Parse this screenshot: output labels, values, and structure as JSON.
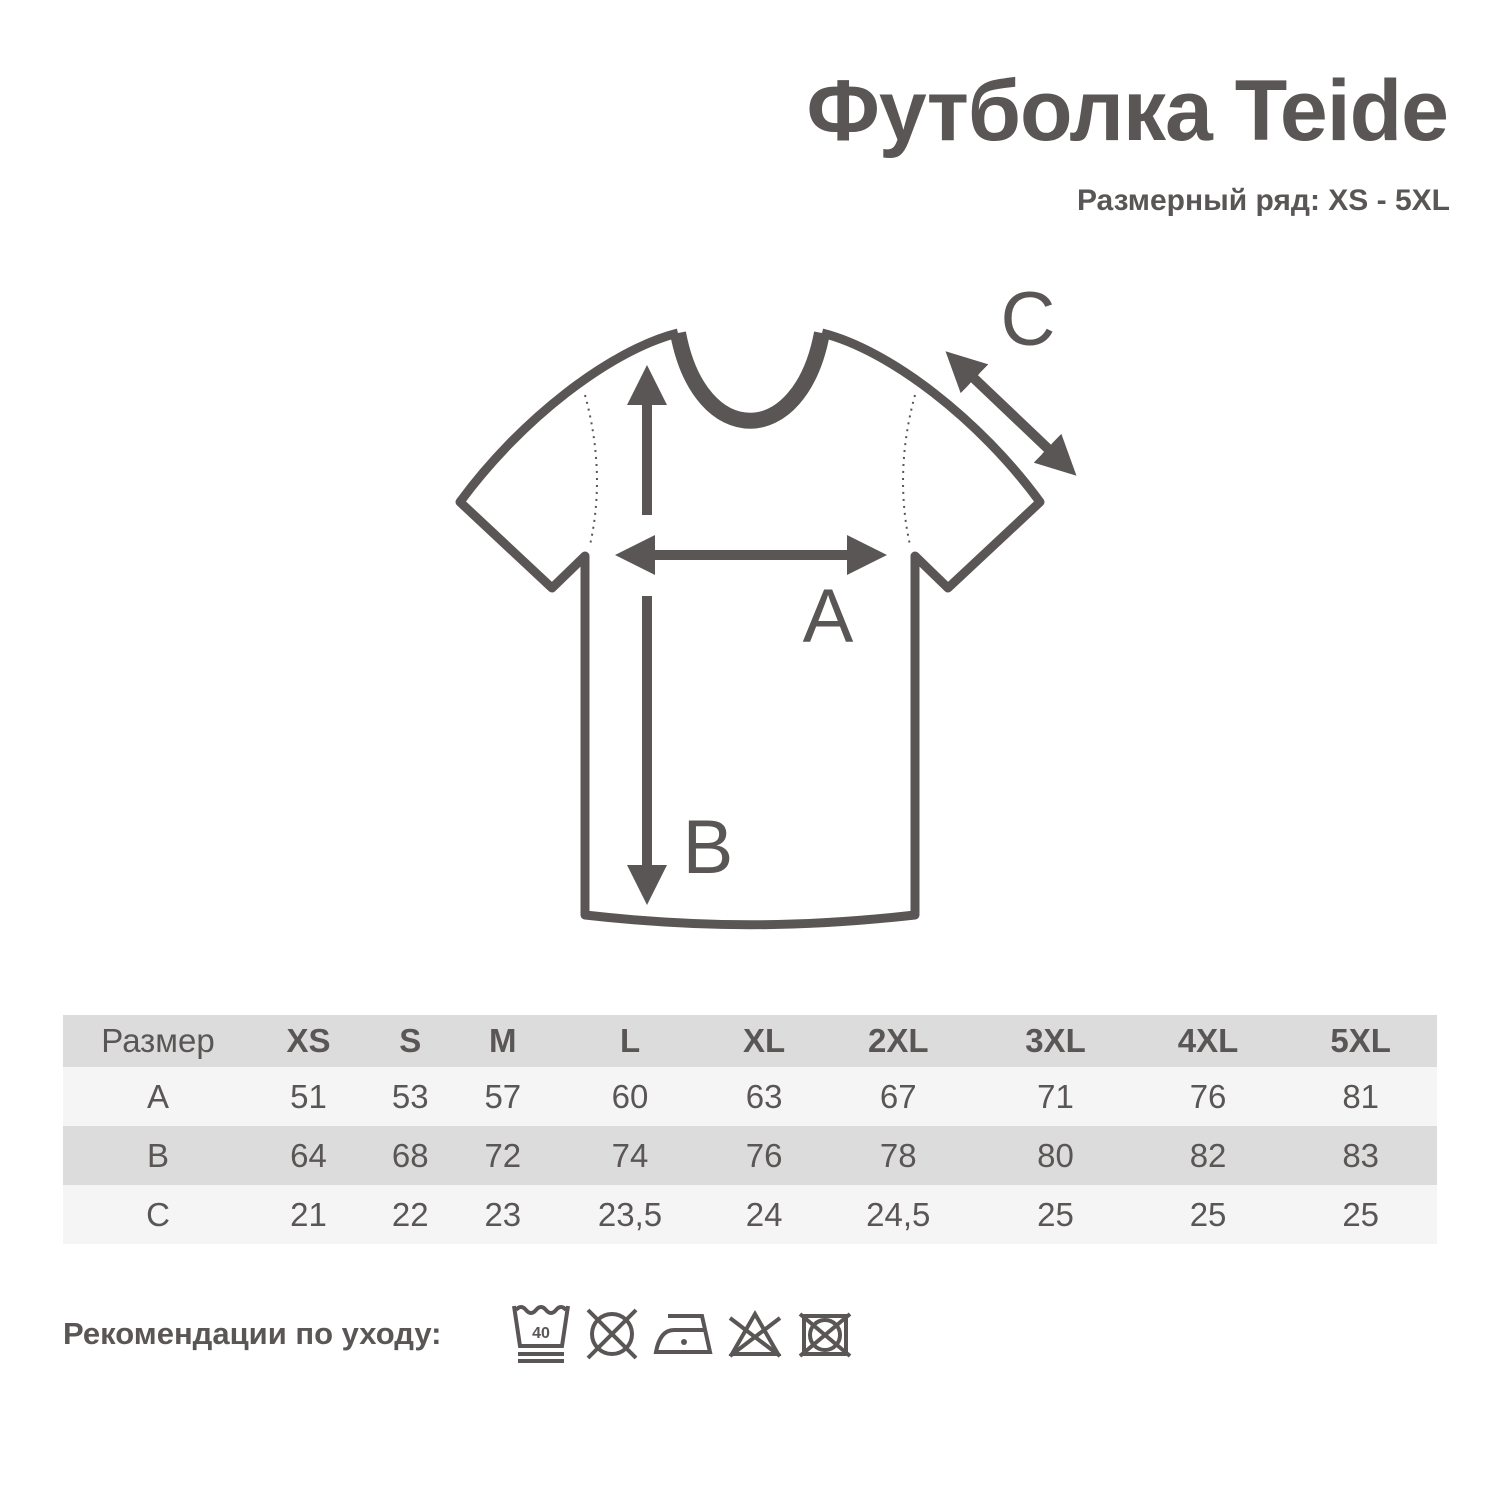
{
  "title": "Футболка Teide",
  "subtitle": "Размерный ряд: XS - 5XL",
  "diagram": {
    "labels": {
      "a": "A",
      "b": "B",
      "c": "C"
    }
  },
  "table": {
    "header": [
      "Размер",
      "XS",
      "S",
      "M",
      "L",
      "XL",
      "2XL",
      "3XL",
      "4XL",
      "5XL"
    ],
    "rows": [
      [
        "A",
        "51",
        "53",
        "57",
        "60",
        "63",
        "67",
        "71",
        "76",
        "81"
      ],
      [
        "B",
        "64",
        "68",
        "72",
        "74",
        "76",
        "78",
        "80",
        "82",
        "83"
      ],
      [
        "C",
        "21",
        "22",
        "23",
        "23,5",
        "24",
        "24,5",
        "25",
        "25",
        "25"
      ]
    ]
  },
  "care": {
    "label": "Рекомендации по уходу:",
    "wash_temp": "40",
    "icons": [
      "wash-40-gentle-icon",
      "no-tumble-dry-icon",
      "iron-low-icon",
      "no-bleach-icon",
      "no-dry-clean-icon"
    ]
  },
  "colors": {
    "text": "#5a5655",
    "header_bg": "#dcdcdc",
    "row_light": "#f5f5f5"
  }
}
